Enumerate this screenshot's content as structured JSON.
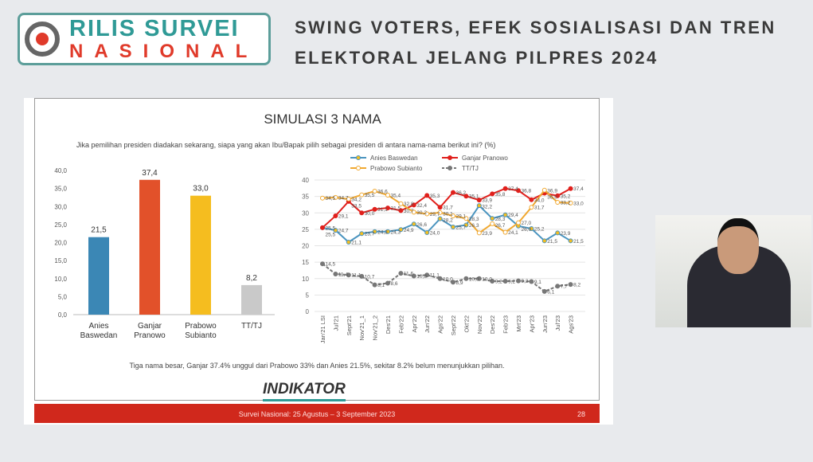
{
  "header": {
    "logo_line1": "RILIS SURVEI",
    "logo_line2": "NASIONAL",
    "title_line1": "SWING VOTERS, EFEK SOSIALISASI DAN TREN",
    "title_line2": "ELEKTORAL JELANG PILPRES 2024"
  },
  "slide": {
    "title": "SIMULASI 3 NAMA",
    "question": "Jika pemilihan presiden diadakan sekarang, siapa yang akan Ibu/Bapak pilih sebagai presiden di antara nama-nama berikut ini? (%)",
    "note": "Tiga nama besar, Ganjar 37.4% unggul dari Prabowo 33% dan Anies 21.5%, sekitar 8.2% belum menunjukkan pilihan.",
    "brand": "INDIKATOR",
    "footer": "Survei Nasional: 25 Agustus – 3 September 2023",
    "page": "28"
  },
  "chart_data": [
    {
      "type": "bar",
      "categories": [
        "Anies Baswedan",
        "Ganjar Pranowo",
        "Prabowo Subianto",
        "TT/TJ"
      ],
      "values": [
        21.5,
        37.4,
        33.0,
        8.2
      ],
      "labels": [
        "21,5",
        "37,4",
        "33,0",
        "8,2"
      ],
      "colors": [
        "#3b87b5",
        "#e2512a",
        "#f5bd1f",
        "#c9c9c9"
      ],
      "yticks": [
        "0,0",
        "5,0",
        "10,0",
        "15,0",
        "20,0",
        "25,0",
        "30,0",
        "35,0",
        "40,0"
      ],
      "ylim": [
        0,
        40
      ]
    },
    {
      "type": "line",
      "categories": [
        "Jan'21 LSI",
        "Jul'21",
        "Sept'21",
        "Nov'21_1",
        "Nov'21_2",
        "Des'21",
        "Feb'22",
        "Apr'22",
        "Jun'22",
        "Ags'22",
        "Sept'22",
        "Okt'22",
        "Nov'22",
        "Des'22",
        "Feb'23",
        "Mrt'23",
        "Apr'23",
        "Jun'23",
        "Jul'23",
        "Ags'23"
      ],
      "ylim": [
        0,
        40
      ],
      "yticks": [
        "0",
        "5",
        "10",
        "15",
        "20",
        "25",
        "30",
        "35",
        "40"
      ],
      "series": [
        {
          "name": "Anies Baswedan",
          "color": "#4a94bf",
          "marker": "#f5bd1f",
          "values": [
            25.5,
            24.7,
            21.1,
            23.7,
            24.3,
            24.3,
            24.9,
            26.6,
            24.0,
            28.2,
            25.7,
            26.3,
            32.2,
            28.3,
            29.4,
            26.0,
            25.2,
            21.5,
            23.9,
            21.5
          ]
        },
        {
          "name": "Ganjar Pranowo",
          "color": "#e0201c",
          "marker": "#e0201c",
          "values": [
            25.5,
            29.1,
            33.5,
            30.0,
            31.1,
            31.5,
            30.7,
            32.4,
            35.3,
            31.7,
            36.2,
            35.1,
            33.9,
            35.8,
            37.4,
            36.8,
            34.0,
            36.0,
            35.2,
            37.4
          ]
        },
        {
          "name": "Prabowo Subianto",
          "color": "#f0a830",
          "marker": "#ffffff",
          "values": [
            34.5,
            34.7,
            34.2,
            35.5,
            36.6,
            35.4,
            32.8,
            30.2,
            29.7,
            30.1,
            29.1,
            28.3,
            23.9,
            26.7,
            24.1,
            27.0,
            31.7,
            36.9,
            33.2,
            33.0
          ]
        },
        {
          "name": "TT/TJ",
          "color": "#777777",
          "marker": "#777777",
          "dashed": true,
          "values": [
            14.5,
            11.4,
            11.1,
            10.7,
            8.1,
            8.6,
            11.6,
            10.8,
            11.1,
            10.0,
            8.9,
            10.0,
            10.0,
            9.2,
            9.2,
            9.3,
            9.1,
            6.1,
            7.7,
            8.2
          ]
        }
      ]
    }
  ]
}
